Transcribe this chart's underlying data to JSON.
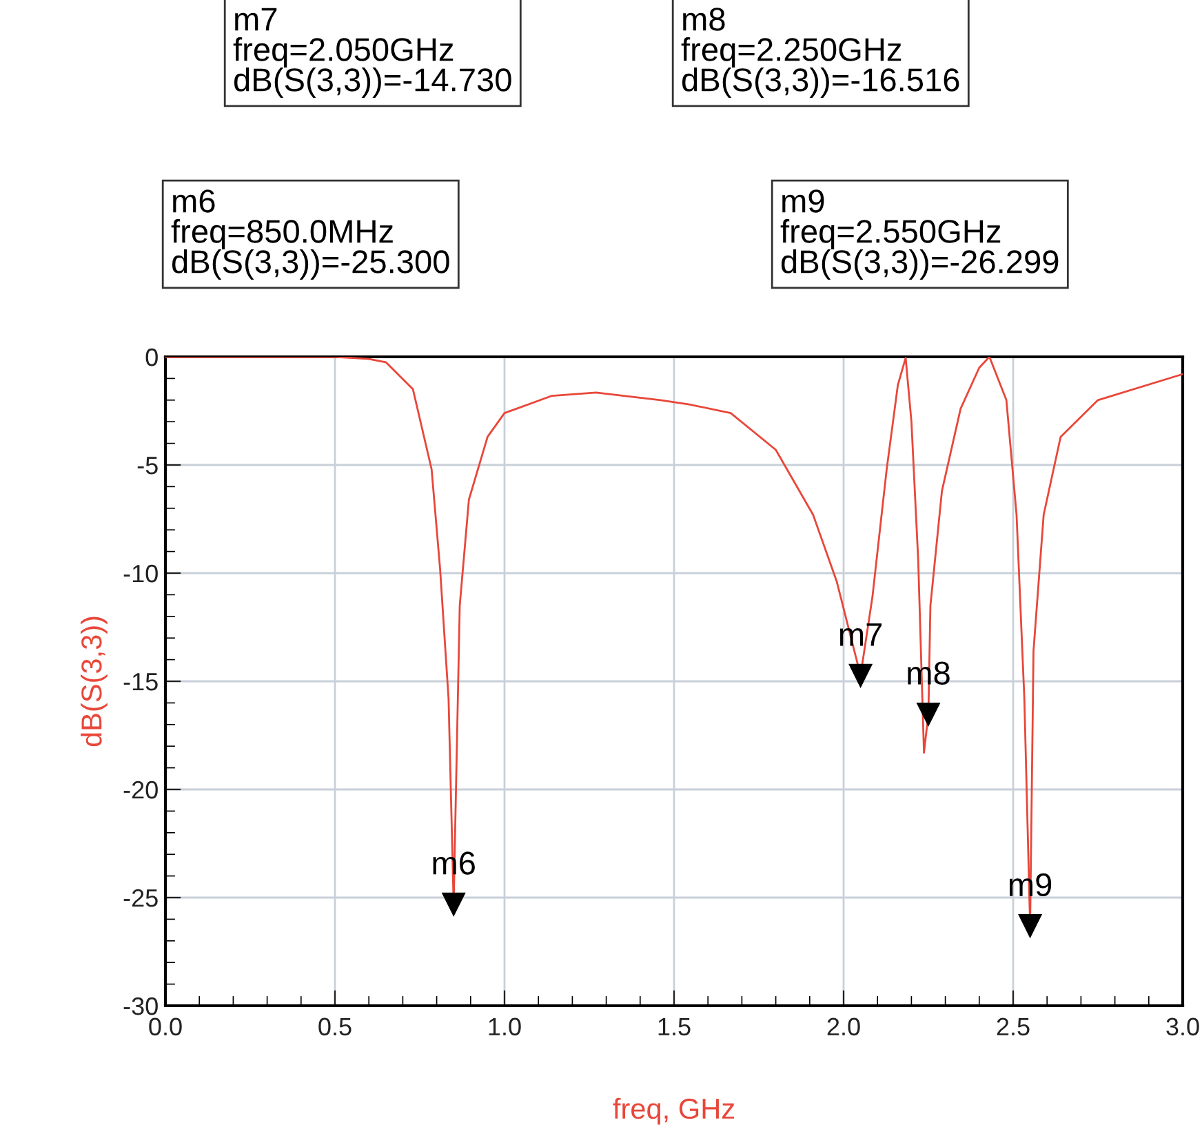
{
  "chart_data": {
    "type": "line",
    "xlabel": "freq, GHz",
    "ylabel": "dB(S(3,3))",
    "x": [
      0.0,
      0.3,
      0.5,
      0.6,
      0.65,
      0.73,
      0.785,
      0.81,
      0.835,
      0.85,
      0.868,
      0.895,
      0.95,
      1.0,
      1.14,
      1.27,
      1.46,
      1.545,
      1.667,
      1.8,
      1.91,
      1.98,
      2.05,
      2.085,
      2.127,
      2.16,
      2.183,
      2.2,
      2.22,
      2.237,
      2.25,
      2.256,
      2.29,
      2.345,
      2.4,
      2.43,
      2.48,
      2.51,
      2.533,
      2.55,
      2.56,
      2.59,
      2.64,
      2.75,
      3.0
    ],
    "series": [
      {
        "color": "#e8473a",
        "values": [
          0.0,
          0.0,
          0.0,
          -0.1,
          -0.25,
          -1.5,
          -5.2,
          -9.8,
          -15.8,
          -25.3,
          -11.5,
          -6.6,
          -3.7,
          -2.6,
          -1.8,
          -1.65,
          -2.0,
          -2.2,
          -2.6,
          -4.3,
          -7.3,
          -10.4,
          -14.73,
          -11.1,
          -5.2,
          -1.3,
          -0.05,
          -3.0,
          -9.4,
          -18.3,
          -16.516,
          -11.5,
          -6.2,
          -2.4,
          -0.5,
          0.0,
          -2.0,
          -7.3,
          -15.8,
          -26.299,
          -13.6,
          -7.3,
          -3.7,
          -2.0,
          -0.8
        ]
      }
    ],
    "xlim": [
      0.0,
      3.0
    ],
    "xticks": [
      {
        "value": 0,
        "label": "0.0"
      },
      {
        "value": 0.5,
        "label": "0.5"
      },
      {
        "value": 1,
        "label": "1.0"
      },
      {
        "value": 1.5,
        "label": "1.5"
      },
      {
        "value": 2,
        "label": "2.0"
      },
      {
        "value": 2.5,
        "label": "2.5"
      },
      {
        "value": 3,
        "label": "3.0"
      }
    ],
    "ylim": [
      -30,
      0
    ],
    "yticks": [
      -30,
      -25,
      -20,
      -15,
      -10,
      -5,
      0
    ],
    "grid": true,
    "marker": "none",
    "line_style": "solid",
    "annotations": [
      "m7\nfreq=2.050GHz\ndB(S(3,3))=-14.730",
      "m8\nfreq=2.250GHz\ndB(S(3,3))=-16.516",
      "m6\nfreq=850.0MHz\ndB(S(3,3))=-25.300",
      "m9\nfreq=2.550GHz\ndB(S(3,3))=-26.299",
      {
        "text": "m6",
        "x": 0.85,
        "y": -25.3
      },
      {
        "text": "m7",
        "x": 2.05,
        "y": -14.73
      },
      {
        "text": "m8",
        "x": 2.25,
        "y": -16.516
      },
      {
        "text": "m9",
        "x": 2.55,
        "y": -26.299
      }
    ]
  }
}
